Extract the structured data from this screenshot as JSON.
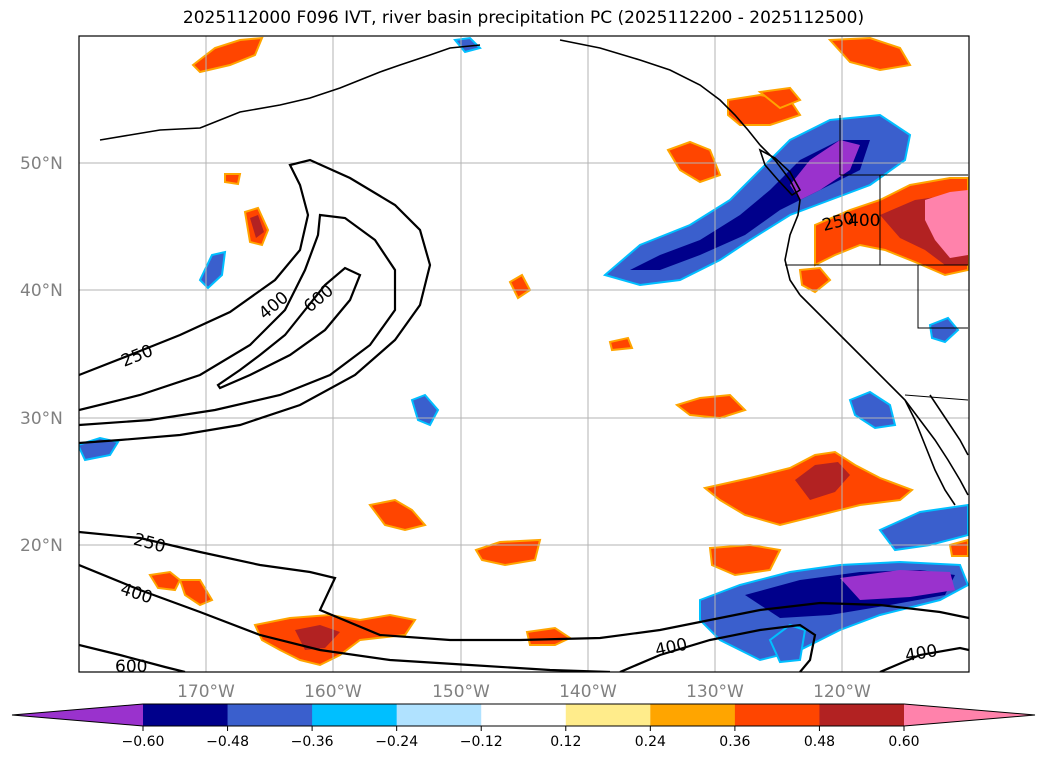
{
  "title": "2025112000 F096 IVT, river basin precipitation PC (2025112200 - 2025112500)",
  "map": {
    "lon_range": [
      -180,
      -110
    ],
    "lat_range": [
      10,
      60
    ],
    "gridlines": true,
    "lat_labels": [
      "50°N",
      "40°N",
      "30°N",
      "20°N"
    ],
    "lon_labels": [
      "170°W",
      "160°W",
      "150°W",
      "140°W",
      "130°W",
      "120°W"
    ],
    "ivt_contour_levels": [
      250,
      400,
      600
    ],
    "ivt_contour_labels": [
      "250",
      "400",
      "600",
      "400",
      "250",
      "250",
      "400",
      "600",
      "400",
      "400"
    ]
  },
  "colorbar": {
    "extend": "both",
    "ticks": [
      "−0.60",
      "−0.48",
      "−0.36",
      "−0.24",
      "−0.12",
      "0.12",
      "0.24",
      "0.36",
      "0.48",
      "0.60"
    ],
    "colors": [
      "#9a32cd",
      "#00008b",
      "#3a5fcd",
      "#00bfff",
      "#b0e2ff",
      "#ffffff",
      "#ffec8b",
      "#ffa500",
      "#ff4500",
      "#b22222",
      "#ff82ab"
    ]
  },
  "colors": {
    "coast": "#000000",
    "grid": "#b3b3b3",
    "tick_label": "#808080"
  }
}
